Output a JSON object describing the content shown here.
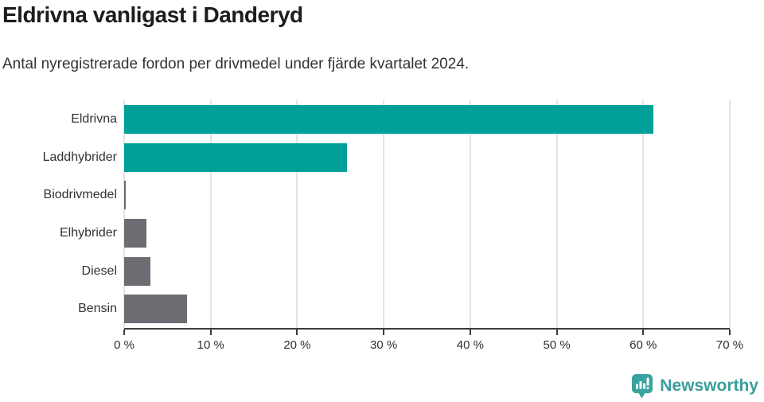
{
  "header": {
    "title": "Eldrivna vanligast i Danderyd",
    "subtitle": "Antal nyregistrerade fordon per drivmedel under fjärde kvartalet 2024."
  },
  "chart_data": {
    "type": "bar",
    "orientation": "horizontal",
    "title": "Eldrivna vanligast i Danderyd",
    "subtitle": "Antal nyregistrerade fordon per drivmedel under fjärde kvartalet 2024.",
    "categories": [
      "Eldrivna",
      "Laddhybrider",
      "Biodrivmedel",
      "Elhybrider",
      "Diesel",
      "Bensin"
    ],
    "values": [
      61.2,
      25.8,
      0.2,
      2.6,
      3.0,
      7.3
    ],
    "value_unit": "%",
    "bar_colors": [
      "#00a099",
      "#00a099",
      "#6c6c72",
      "#6c6c72",
      "#6c6c72",
      "#6c6c72"
    ],
    "xlabel": "",
    "ylabel": "",
    "xlim": [
      0,
      70
    ],
    "x_ticks": [
      "0 %",
      "10 %",
      "20 %",
      "30 %",
      "40 %",
      "50 %",
      "60 %",
      "70 %"
    ],
    "x_tick_values": [
      0,
      10,
      20,
      30,
      40,
      50,
      60,
      70
    ],
    "grid": "vertical-only",
    "legend": "none"
  },
  "branding": {
    "logo_text": "Newsworthy",
    "logo_icon": "speech-bubble-bar-chart-icon"
  },
  "colors": {
    "accent_teal": "#00a099",
    "bar_gray": "#6c6c72",
    "gridline": "#e3e3e3",
    "axis": "#3c3c3c",
    "axis_text": "#2f2f2f",
    "text": "#333333",
    "title_text": "#1d1d1b",
    "brand_teal": "#3a9e9b"
  }
}
